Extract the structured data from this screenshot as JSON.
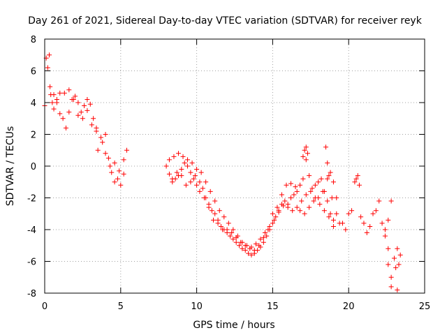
{
  "chart_data": {
    "type": "scatter",
    "title": "Day 261 of 2021, Sidereal Day-to-day VTEC variation (SDTVAR) for receiver reyk",
    "xlabel": "GPS time / hours",
    "ylabel": "SDTVAR / TECUs",
    "xlim": [
      0,
      25
    ],
    "ylim": [
      -8,
      8
    ],
    "xticks": [
      0,
      5,
      10,
      15,
      20,
      25
    ],
    "xtick_labels": [
      "0",
      "5",
      "10",
      "15",
      "20",
      "25"
    ],
    "yticks": [
      -8,
      -6,
      -4,
      -2,
      0,
      2,
      4,
      6,
      8
    ],
    "ytick_labels": [
      "-8",
      "-6",
      "-4",
      "-2",
      "0",
      "2",
      "4",
      "6",
      "8"
    ],
    "grid": true,
    "marker": "+",
    "colors": {
      "series": "#ff0000",
      "grid": "#a0a0a0",
      "axis": "#000000"
    },
    "series": [
      {
        "name": "SDTVAR",
        "points": [
          [
            0.0,
            3.8
          ],
          [
            0.1,
            6.8
          ],
          [
            0.2,
            6.2
          ],
          [
            0.3,
            7.0
          ],
          [
            0.35,
            5.0
          ],
          [
            0.4,
            4.5
          ],
          [
            0.5,
            4.0
          ],
          [
            0.6,
            3.6
          ],
          [
            0.8,
            4.2
          ],
          [
            1.0,
            4.6
          ],
          [
            1.2,
            3.0
          ],
          [
            1.4,
            2.4
          ],
          [
            1.6,
            3.4
          ],
          [
            1.8,
            4.2
          ],
          [
            2.0,
            4.4
          ],
          [
            2.2,
            4.0
          ],
          [
            2.4,
            3.4
          ],
          [
            2.6,
            3.8
          ],
          [
            2.8,
            4.2
          ],
          [
            3.0,
            3.9
          ],
          [
            3.2,
            3.0
          ],
          [
            3.4,
            2.4
          ],
          [
            3.5,
            1.0
          ],
          [
            3.8,
            1.5
          ],
          [
            4.0,
            2.0
          ],
          [
            4.2,
            0.5
          ],
          [
            4.4,
            -0.4
          ],
          [
            4.6,
            -1.0
          ],
          [
            4.8,
            -0.8
          ],
          [
            5.0,
            -1.2
          ],
          [
            5.2,
            0.4
          ],
          [
            5.4,
            1.0
          ],
          [
            0.6,
            4.5
          ],
          [
            0.8,
            4.0
          ],
          [
            1.0,
            3.3
          ],
          [
            1.3,
            4.6
          ],
          [
            1.6,
            4.8
          ],
          [
            1.9,
            4.2
          ],
          [
            2.2,
            3.2
          ],
          [
            2.5,
            3.0
          ],
          [
            2.8,
            3.5
          ],
          [
            3.1,
            2.6
          ],
          [
            3.4,
            2.2
          ],
          [
            3.7,
            1.8
          ],
          [
            4.0,
            0.8
          ],
          [
            4.3,
            0.0
          ],
          [
            4.6,
            0.2
          ],
          [
            4.9,
            -0.3
          ],
          [
            5.2,
            -0.5
          ],
          [
            8.0,
            0.0
          ],
          [
            8.2,
            -0.5
          ],
          [
            8.4,
            -1.0
          ],
          [
            8.6,
            -0.8
          ],
          [
            8.8,
            -0.6
          ],
          [
            9.0,
            -0.2
          ],
          [
            9.2,
            0.2
          ],
          [
            9.4,
            0.0
          ],
          [
            9.6,
            -0.4
          ],
          [
            9.8,
            -0.8
          ],
          [
            10.0,
            -1.2
          ],
          [
            10.2,
            -1.0
          ],
          [
            10.4,
            -1.4
          ],
          [
            10.6,
            -2.0
          ],
          [
            10.8,
            -2.4
          ],
          [
            11.0,
            -2.8
          ],
          [
            11.2,
            -3.0
          ],
          [
            11.4,
            -3.4
          ],
          [
            11.6,
            -3.8
          ],
          [
            11.8,
            -4.0
          ],
          [
            12.0,
            -4.2
          ],
          [
            12.2,
            -4.4
          ],
          [
            12.4,
            -4.6
          ],
          [
            12.6,
            -4.8
          ],
          [
            12.8,
            -5.0
          ],
          [
            13.0,
            -5.2
          ],
          [
            13.2,
            -5.3
          ],
          [
            13.4,
            -5.5
          ],
          [
            13.6,
            -5.6
          ],
          [
            13.8,
            -5.5
          ],
          [
            14.0,
            -5.3
          ],
          [
            14.2,
            -5.1
          ],
          [
            14.4,
            -4.8
          ],
          [
            14.6,
            -4.4
          ],
          [
            14.8,
            -4.0
          ],
          [
            15.0,
            -3.6
          ],
          [
            15.2,
            -3.2
          ],
          [
            15.4,
            -2.8
          ],
          [
            15.6,
            -2.4
          ],
          [
            15.8,
            -2.2
          ],
          [
            16.0,
            -2.4
          ],
          [
            16.2,
            -2.0
          ],
          [
            16.4,
            -1.8
          ],
          [
            16.6,
            -1.6
          ],
          [
            16.8,
            -1.2
          ],
          [
            17.0,
            -0.8
          ],
          [
            17.2,
            0.4
          ],
          [
            17.4,
            -0.6
          ],
          [
            17.6,
            -1.4
          ],
          [
            17.8,
            -1.2
          ],
          [
            18.0,
            -1.0
          ],
          [
            18.2,
            -0.8
          ],
          [
            18.4,
            -1.6
          ],
          [
            18.6,
            -2.2
          ],
          [
            18.8,
            -3.0
          ],
          [
            19.0,
            -3.4
          ],
          [
            19.2,
            -3.0
          ],
          [
            19.4,
            -3.6
          ],
          [
            8.2,
            0.4
          ],
          [
            8.5,
            0.6
          ],
          [
            8.8,
            0.8
          ],
          [
            9.1,
            0.6
          ],
          [
            9.4,
            0.4
          ],
          [
            9.7,
            0.2
          ],
          [
            10.0,
            -0.2
          ],
          [
            10.3,
            -0.4
          ],
          [
            10.6,
            -1.0
          ],
          [
            10.9,
            -1.6
          ],
          [
            11.2,
            -2.2
          ],
          [
            11.5,
            -2.8
          ],
          [
            11.8,
            -3.2
          ],
          [
            12.1,
            -3.6
          ],
          [
            12.4,
            -4.0
          ],
          [
            12.7,
            -4.4
          ],
          [
            13.0,
            -4.8
          ],
          [
            13.3,
            -5.0
          ],
          [
            13.6,
            -5.1
          ],
          [
            13.9,
            -4.9
          ],
          [
            14.2,
            -4.6
          ],
          [
            14.5,
            -4.2
          ],
          [
            14.8,
            -3.8
          ],
          [
            15.1,
            -3.4
          ],
          [
            15.4,
            -2.9
          ],
          [
            15.7,
            -2.5
          ],
          [
            16.0,
            -2.6
          ],
          [
            16.3,
            -2.8
          ],
          [
            16.6,
            -2.6
          ],
          [
            16.9,
            -2.2
          ],
          [
            17.2,
            -1.8
          ],
          [
            17.5,
            -1.6
          ],
          [
            17.8,
            -2.0
          ],
          [
            18.1,
            -2.4
          ],
          [
            18.4,
            -2.8
          ],
          [
            18.7,
            -3.2
          ],
          [
            19.0,
            -3.8
          ],
          [
            8.4,
            -0.8
          ],
          [
            8.7,
            -0.4
          ],
          [
            9.0,
            -0.6
          ],
          [
            9.3,
            -1.2
          ],
          [
            9.6,
            -1.0
          ],
          [
            9.9,
            -0.6
          ],
          [
            10.2,
            -1.6
          ],
          [
            10.5,
            -2.0
          ],
          [
            10.8,
            -2.6
          ],
          [
            11.1,
            -3.4
          ],
          [
            11.4,
            -3.6
          ],
          [
            11.7,
            -4.0
          ],
          [
            12.0,
            -4.0
          ],
          [
            12.3,
            -4.2
          ],
          [
            12.6,
            -4.5
          ],
          [
            12.9,
            -4.8
          ],
          [
            13.2,
            -5.0
          ],
          [
            13.5,
            -5.2
          ],
          [
            13.8,
            -5.3
          ],
          [
            14.1,
            -5.0
          ],
          [
            14.4,
            -4.5
          ],
          [
            14.7,
            -4.0
          ],
          [
            15.0,
            -3.0
          ],
          [
            15.3,
            -2.6
          ],
          [
            15.6,
            -1.8
          ],
          [
            15.9,
            -1.2
          ],
          [
            16.2,
            -1.1
          ],
          [
            16.5,
            -1.3
          ],
          [
            16.8,
            -2.8
          ],
          [
            17.1,
            -3.0
          ],
          [
            17.4,
            -2.6
          ],
          [
            17.7,
            -2.2
          ],
          [
            18.0,
            -2.0
          ],
          [
            18.3,
            -1.6
          ],
          [
            18.6,
            -0.8
          ],
          [
            18.9,
            -2.0
          ],
          [
            17.0,
            0.6
          ],
          [
            17.1,
            1.0
          ],
          [
            17.2,
            1.2
          ],
          [
            17.3,
            0.8
          ],
          [
            18.5,
            1.2
          ],
          [
            18.6,
            0.2
          ],
          [
            18.7,
            -0.6
          ],
          [
            18.8,
            -0.4
          ],
          [
            19.0,
            -1.0
          ],
          [
            19.2,
            -2.0
          ],
          [
            19.6,
            -3.6
          ],
          [
            19.8,
            -4.0
          ],
          [
            20.0,
            -3.0
          ],
          [
            20.2,
            -2.8
          ],
          [
            20.4,
            -1.0
          ],
          [
            20.5,
            -0.8
          ],
          [
            20.6,
            -0.6
          ],
          [
            20.7,
            -1.2
          ],
          [
            20.8,
            -3.2
          ],
          [
            21.0,
            -3.6
          ],
          [
            21.2,
            -4.2
          ],
          [
            21.4,
            -3.8
          ],
          [
            21.6,
            -3.0
          ],
          [
            21.8,
            -2.8
          ],
          [
            22.0,
            -2.2
          ],
          [
            22.2,
            -3.6
          ],
          [
            22.4,
            -4.0
          ],
          [
            22.6,
            -3.4
          ],
          [
            22.8,
            -2.2
          ],
          [
            22.4,
            -4.4
          ],
          [
            22.6,
            -5.2
          ],
          [
            22.6,
            -6.2
          ],
          [
            22.8,
            -7.0
          ],
          [
            22.8,
            -7.6
          ],
          [
            23.0,
            -5.8
          ],
          [
            23.1,
            -6.4
          ],
          [
            23.2,
            -5.2
          ],
          [
            23.3,
            -6.2
          ],
          [
            23.4,
            -5.6
          ],
          [
            23.2,
            -7.8
          ]
        ]
      }
    ]
  }
}
